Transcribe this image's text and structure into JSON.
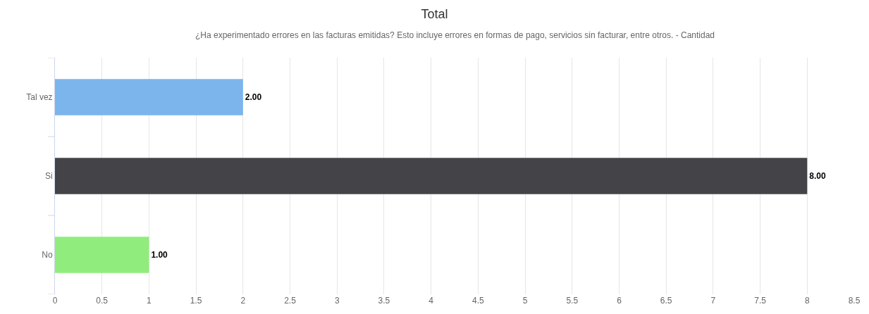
{
  "chart_data": {
    "type": "bar",
    "orientation": "horizontal",
    "title": "Total",
    "subtitle": "¿Ha experimentado errores en las facturas emitidas? Esto incluye errores en formas de pago, servicios sin facturar, entre otros. - Cantidad",
    "categories": [
      "Tal vez",
      "Si",
      "No"
    ],
    "values": [
      2,
      8,
      1
    ],
    "colors": [
      "#7cb5ec",
      "#434348",
      "#90ed7d"
    ],
    "value_labels": [
      "2.00",
      "8.00",
      "1.00"
    ],
    "xlim": [
      0,
      8.5
    ],
    "xticks": [
      0,
      0.5,
      1,
      1.5,
      2,
      2.5,
      3,
      3.5,
      4,
      4.5,
      5,
      5.5,
      6,
      6.5,
      7,
      7.5,
      8,
      8.5
    ],
    "grid": "x",
    "legend": false
  }
}
